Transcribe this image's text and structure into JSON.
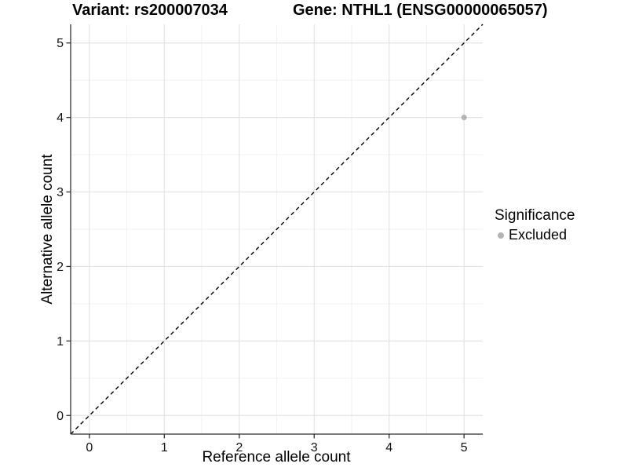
{
  "colors": {
    "background": "#ffffff",
    "grid_major": "#e4e4e4",
    "grid_minor": "#f1f1f1",
    "axis_line": "#2f2f2f",
    "tick_text": "#111111",
    "title_text": "#000000",
    "point": "#b4b4b4",
    "reference_line": "#000000"
  },
  "chart_data": {
    "type": "scatter",
    "titles": {
      "variant": "Variant: rs200007034",
      "gene": "Gene: NTHL1 (ENSG00000065057)"
    },
    "xlabel": "Reference allele count",
    "ylabel": "Alternative allele count",
    "xlim": [
      -0.25,
      5.25
    ],
    "ylim": [
      -0.25,
      5.25
    ],
    "x_ticks": [
      0,
      1,
      2,
      3,
      4,
      5
    ],
    "y_ticks": [
      0,
      1,
      2,
      3,
      4,
      5
    ],
    "grid": {
      "major": true,
      "minor": true
    },
    "series": [
      {
        "name": "Excluded",
        "color": "#b4b4b4",
        "points": [
          {
            "x": 5,
            "y": 4
          }
        ]
      }
    ],
    "reference_line": {
      "slope": 1,
      "intercept": 0,
      "style": "dashed",
      "color": "#000000"
    },
    "legend": {
      "title": "Significance",
      "position": "right",
      "items": [
        {
          "label": "Excluded",
          "color": "#b4b4b4",
          "marker": "circle"
        }
      ]
    }
  }
}
